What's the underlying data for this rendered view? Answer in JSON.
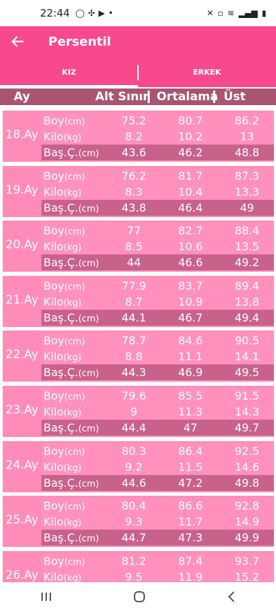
{
  "status": {
    "time": "22:44",
    "icons_left": [
      "whatsapp-icon",
      "pinwheel-icon",
      "youtube-icon",
      "dot-icon"
    ],
    "icons_right": [
      "mute-icon",
      "battery-saver-icon",
      "wifi-icon",
      "signal-icon",
      "battery-icon"
    ]
  },
  "appbar": {
    "title": "Persentil"
  },
  "tabs": [
    {
      "label": "KIZ",
      "active": true
    },
    {
      "label": "ERKEK",
      "active": false
    }
  ],
  "header": {
    "month": "Ay",
    "low": "Alt Sınır",
    "avg": "Ortalama",
    "high": "Üst Sınır"
  },
  "colors": {
    "primary": "#f8488e",
    "header": "#a95571",
    "card": "#ff8cb8",
    "head_row": "#c9628a"
  },
  "labels": {
    "boy": {
      "name": "Boy",
      "unit": "(cm)"
    },
    "kilo": {
      "name": "Kilo",
      "unit": "(kg)"
    },
    "bas": {
      "name": "Baş.Ç.",
      "unit": "(cm)"
    }
  },
  "rows": [
    {
      "month": "18.Ay",
      "boy": [
        "75.2",
        "80.7",
        "86.2"
      ],
      "kilo": [
        "8.2",
        "10.2",
        "13"
      ],
      "bas": [
        "43.6",
        "46.2",
        "48.8"
      ]
    },
    {
      "month": "19.Ay",
      "boy": [
        "76.2",
        "81.7",
        "87.3"
      ],
      "kilo": [
        "8.3",
        "10.4",
        "13.3"
      ],
      "bas": [
        "43.8",
        "46.4",
        "49"
      ]
    },
    {
      "month": "20.Ay",
      "boy": [
        "77",
        "82.7",
        "88.4"
      ],
      "kilo": [
        "8.5",
        "10.6",
        "13.5"
      ],
      "bas": [
        "44",
        "46.6",
        "49.2"
      ]
    },
    {
      "month": "21.Ay",
      "boy": [
        "77.9",
        "83.7",
        "89.4"
      ],
      "kilo": [
        "8.7",
        "10.9",
        "13.8"
      ],
      "bas": [
        "44.1",
        "46.7",
        "49.4"
      ]
    },
    {
      "month": "22.Ay",
      "boy": [
        "78.7",
        "84.6",
        "90.5"
      ],
      "kilo": [
        "8.8",
        "11.1",
        "14.1"
      ],
      "bas": [
        "44.3",
        "46.9",
        "49.5"
      ]
    },
    {
      "month": "23.Ay",
      "boy": [
        "79.6",
        "85.5",
        "91.5"
      ],
      "kilo": [
        "9",
        "11.3",
        "14.3"
      ],
      "bas": [
        "44.4",
        "47",
        "49.7"
      ]
    },
    {
      "month": "24.Ay",
      "boy": [
        "80.3",
        "86.4",
        "92.5"
      ],
      "kilo": [
        "9.2",
        "11.5",
        "14.6"
      ],
      "bas": [
        "44.6",
        "47.2",
        "49.8"
      ]
    },
    {
      "month": "25.Ay",
      "boy": [
        "80.4",
        "86.6",
        "92.8"
      ],
      "kilo": [
        "9.3",
        "11.7",
        "14.9"
      ],
      "bas": [
        "44.7",
        "47.3",
        "49.9"
      ]
    },
    {
      "month": "26.Ay",
      "boy": [
        "81.2",
        "87.4",
        "93.7"
      ],
      "kilo": [
        "9.5",
        "11.9",
        "15.2"
      ],
      "bas": [
        "",
        "",
        ""
      ]
    }
  ],
  "navbar": {
    "recent_icon": "recent-apps-icon",
    "home_icon": "home-icon",
    "back_icon": "back-nav-icon"
  }
}
